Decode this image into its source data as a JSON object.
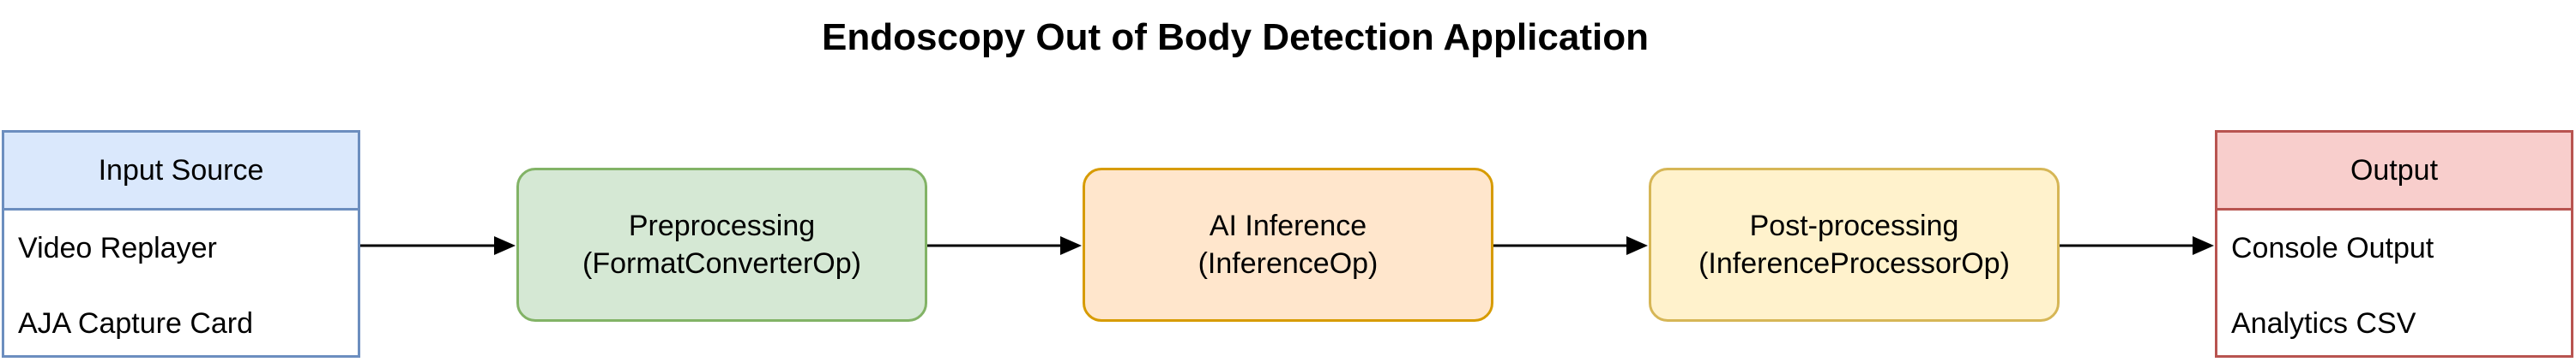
{
  "title": "Endoscopy Out of Body Detection Application",
  "input_source": {
    "header": "Input Source",
    "items": [
      "Video Replayer",
      "AJA Capture Card"
    ]
  },
  "stages": [
    {
      "line1": "Preprocessing",
      "line2": "(FormatConverterOp)"
    },
    {
      "line1": "AI Inference",
      "line2": "(InferenceOp)"
    },
    {
      "line1": "Post-processing",
      "line2": "(InferenceProcessorOp)"
    }
  ],
  "output": {
    "header": "Output",
    "items": [
      "Console Output",
      "Analytics CSV"
    ]
  },
  "colors": {
    "input_fill": "#dae8fc",
    "input_stroke": "#6c8ebf",
    "preprocessing_fill": "#d5e8d4",
    "preprocessing_stroke": "#82b366",
    "inference_fill": "#ffe6cc",
    "inference_stroke": "#d79b00",
    "postprocessing_fill": "#fff2cc",
    "postprocessing_stroke": "#d6b656",
    "output_fill": "#f8cecc",
    "output_stroke": "#b85450",
    "arrow": "#000000"
  }
}
